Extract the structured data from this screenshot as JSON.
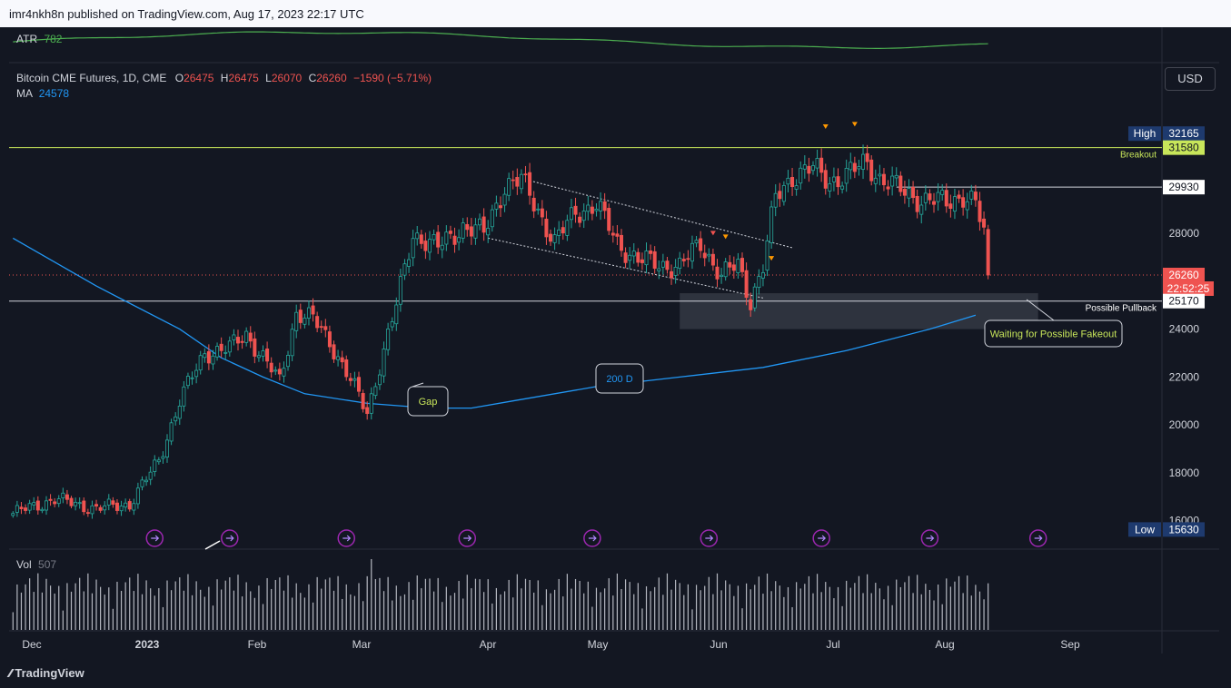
{
  "header": {
    "published": "imr4nkh8n published on TradingView.com, Aug 17, 2023 22:17 UTC"
  },
  "footer": {
    "brand": "TradingView"
  },
  "atr": {
    "label": "ATR",
    "value": "782"
  },
  "legend": {
    "symbol": "Bitcoin CME Futures, 1D, CME",
    "o_label": "O",
    "o": "26475",
    "h_label": "H",
    "h": "26475",
    "l_label": "L",
    "l": "26070",
    "c_label": "C",
    "c": "26260",
    "change": "−1590 (−5.71%)",
    "ma_label": "MA",
    "ma": "24578"
  },
  "currency": "USD",
  "volume": {
    "label": "Vol",
    "value": "507"
  },
  "colors": {
    "up": "#26a69a",
    "down": "#ef5350",
    "ma": "#2196f3",
    "atr": "#4caf50",
    "breakout": "#c8e65a",
    "bg": "#131722"
  },
  "chart_data": {
    "type": "candlestick",
    "symbol": "Bitcoin CME Futures",
    "interval": "1D",
    "ylim": [
      15000,
      33500
    ],
    "y_ticks": [
      16000,
      18000,
      20000,
      22000,
      24000,
      28000
    ],
    "x_ticks": [
      "Dec",
      "2023",
      "Feb",
      "Mar",
      "Apr",
      "May",
      "Jun",
      "Jul",
      "Aug",
      "Sep"
    ],
    "price_labels": [
      {
        "tag": "High",
        "value": "32165"
      },
      {
        "tag": "",
        "value": "31580"
      },
      {
        "tag": "",
        "value": "29930"
      },
      {
        "tag": "",
        "value": "26260",
        "sub": "22:52:25"
      },
      {
        "tag": "",
        "value": "25170"
      },
      {
        "tag": "Low",
        "value": "15630"
      }
    ],
    "levels": [
      {
        "value": 31580,
        "label": "Breakout"
      },
      {
        "value": 25170,
        "label": "Possible Pullback"
      },
      {
        "value": 29930,
        "label": ""
      },
      {
        "value": 26260,
        "label": ""
      }
    ],
    "annotations": [
      "Gap",
      "200 D",
      "Waiting for Possible Fakeout"
    ],
    "zone": {
      "from": 24000,
      "to": 25500
    },
    "anchors": [
      {
        "i": 0,
        "c": 16300
      },
      {
        "i": 10,
        "c": 16900
      },
      {
        "i": 20,
        "c": 16500
      },
      {
        "i": 28,
        "c": 16700
      },
      {
        "i": 35,
        "c": 18500
      },
      {
        "i": 40,
        "c": 21000
      },
      {
        "i": 46,
        "c": 23000
      },
      {
        "i": 52,
        "c": 23200
      },
      {
        "i": 56,
        "c": 23800
      },
      {
        "i": 60,
        "c": 22800
      },
      {
        "i": 64,
        "c": 21800
      },
      {
        "i": 68,
        "c": 24700
      },
      {
        "i": 72,
        "c": 24400
      },
      {
        "i": 76,
        "c": 23500
      },
      {
        "i": 80,
        "c": 22200
      },
      {
        "i": 85,
        "c": 20500
      },
      {
        "i": 88,
        "c": 22500
      },
      {
        "i": 92,
        "c": 25000
      },
      {
        "i": 96,
        "c": 28000
      },
      {
        "i": 102,
        "c": 27400
      },
      {
        "i": 108,
        "c": 28300
      },
      {
        "i": 113,
        "c": 28000
      },
      {
        "i": 118,
        "c": 30000
      },
      {
        "i": 122,
        "c": 30200
      },
      {
        "i": 126,
        "c": 29000
      },
      {
        "i": 130,
        "c": 27600
      },
      {
        "i": 135,
        "c": 28900
      },
      {
        "i": 140,
        "c": 29200
      },
      {
        "i": 145,
        "c": 27600
      },
      {
        "i": 150,
        "c": 26900
      },
      {
        "i": 155,
        "c": 26700
      },
      {
        "i": 160,
        "c": 26600
      },
      {
        "i": 165,
        "c": 27600
      },
      {
        "i": 170,
        "c": 26200
      },
      {
        "i": 174,
        "c": 26700
      },
      {
        "i": 177,
        "c": 25200
      },
      {
        "i": 180,
        "c": 26600
      },
      {
        "i": 183,
        "c": 29500
      },
      {
        "i": 187,
        "c": 30400
      },
      {
        "i": 192,
        "c": 30700
      },
      {
        "i": 196,
        "c": 30200
      },
      {
        "i": 200,
        "c": 30400
      },
      {
        "i": 205,
        "c": 31000
      },
      {
        "i": 208,
        "c": 30300
      },
      {
        "i": 212,
        "c": 29900
      },
      {
        "i": 218,
        "c": 29400
      },
      {
        "i": 224,
        "c": 29300
      },
      {
        "i": 228,
        "c": 29600
      },
      {
        "i": 231,
        "c": 29200
      },
      {
        "i": 233,
        "c": 28000
      },
      {
        "i": 234,
        "c": 26260
      }
    ],
    "ma_200": [
      {
        "i": 0,
        "v": 27800
      },
      {
        "i": 20,
        "v": 25800
      },
      {
        "i": 40,
        "v": 24000
      },
      {
        "i": 50,
        "v": 22800
      },
      {
        "i": 60,
        "v": 22000
      },
      {
        "i": 70,
        "v": 21300
      },
      {
        "i": 85,
        "v": 20900
      },
      {
        "i": 100,
        "v": 20700
      },
      {
        "i": 110,
        "v": 20700
      },
      {
        "i": 120,
        "v": 21000
      },
      {
        "i": 140,
        "v": 21600
      },
      {
        "i": 160,
        "v": 22000
      },
      {
        "i": 180,
        "v": 22400
      },
      {
        "i": 200,
        "v": 23100
      },
      {
        "i": 220,
        "v": 24000
      },
      {
        "i": 231,
        "v": 24578
      }
    ]
  }
}
